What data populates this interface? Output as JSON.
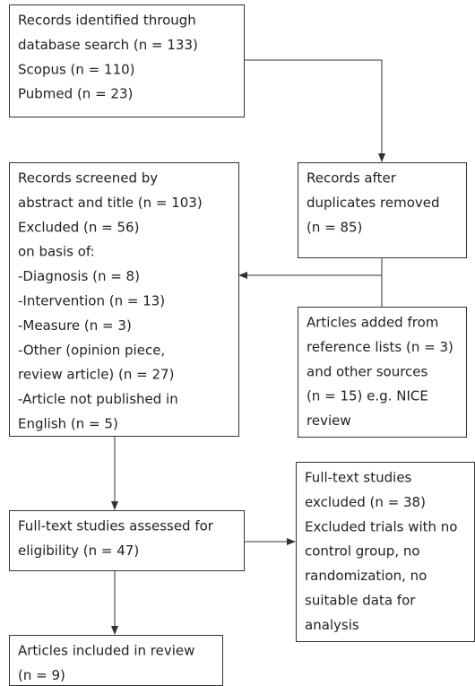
{
  "boxes": [
    {
      "lines": [
        "Records identified through",
        "database search (n = 133)",
        "Scopus (n = 110)",
        "Pubmed (n = 23)"
      ]
    },
    {
      "lines": [
        "Records after",
        "duplicates removed",
        "(n = 85)"
      ]
    },
    {
      "lines": [
        "Records screened by",
        "abstract and title (n = 103)",
        "Excluded (n = 56)",
        "on basis of:",
        "-Diagnosis (n = 8)",
        "-Intervention (n = 13)",
        "-Measure (n = 3)",
        "-Other (opinion piece,",
        "review article) (n = 27)",
        "-Article not published in",
        "English (n = 5)"
      ]
    },
    {
      "lines": [
        "Articles added from",
        "reference lists (n = 3)",
        "and other sources",
        "(n = 15) e.g. NICE",
        "review"
      ]
    },
    {
      "lines": [
        "Full-text studies assessed for",
        "eligibility (n = 47)"
      ]
    },
    {
      "lines": [
        "Full-text studies",
        "excluded (n = 38)",
        "Excluded trials with no",
        "control group, no",
        "randomization, no",
        "suitable data for",
        "analysis"
      ]
    },
    {
      "lines": [
        "Articles included in review",
        "(n = 9)"
      ]
    }
  ]
}
